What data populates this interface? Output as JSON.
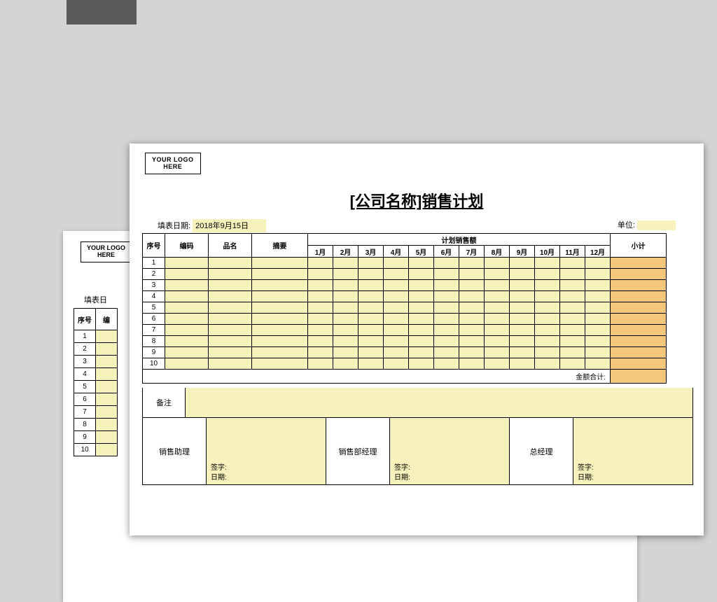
{
  "page": {
    "bg_color": "#d4d4d4",
    "doc_shadow": "rgba(0,0,0,0.4)"
  },
  "logo": {
    "line1": "YOUR LOGO",
    "line2": "HERE"
  },
  "title": "[公司名称]销售计划",
  "meta": {
    "fill_date_label": "填表日期:",
    "fill_date_value": "2018年9月15日",
    "unit_label": "单位:"
  },
  "columns": {
    "seq": "序号",
    "code": "编码",
    "name": "品名",
    "summary": "摘要",
    "plan_header": "计划销售额",
    "months": [
      "1月",
      "2月",
      "3月",
      "4月",
      "5月",
      "6月",
      "7月",
      "8月",
      "9月",
      "10月",
      "11月",
      "12月"
    ],
    "subtotal": "小计"
  },
  "row_numbers": [
    "1",
    "2",
    "3",
    "4",
    "5",
    "6",
    "7",
    "8",
    "9",
    "10"
  ],
  "total_label": "金额合计:",
  "remark_label": "备注",
  "signatures": {
    "assistant": "销售助理",
    "dept_mgr": "销售部经理",
    "gm": "总经理",
    "sign": "签字:",
    "date": "日期:"
  },
  "colors": {
    "input_yellow": "#f7f2bc",
    "subtotal_orange": "#f4c87a",
    "border": "#000000",
    "white": "#ffffff"
  },
  "col_widths": {
    "seq": 32,
    "code": 62,
    "name": 62,
    "summary": 80,
    "month": 36,
    "subtotal": 80
  },
  "back_doc": {
    "meta_label": "填表日",
    "seq_header": "序号",
    "code_header": "编",
    "rows": [
      "1",
      "2",
      "3",
      "4",
      "5",
      "6",
      "7",
      "8",
      "9",
      "10"
    ]
  }
}
